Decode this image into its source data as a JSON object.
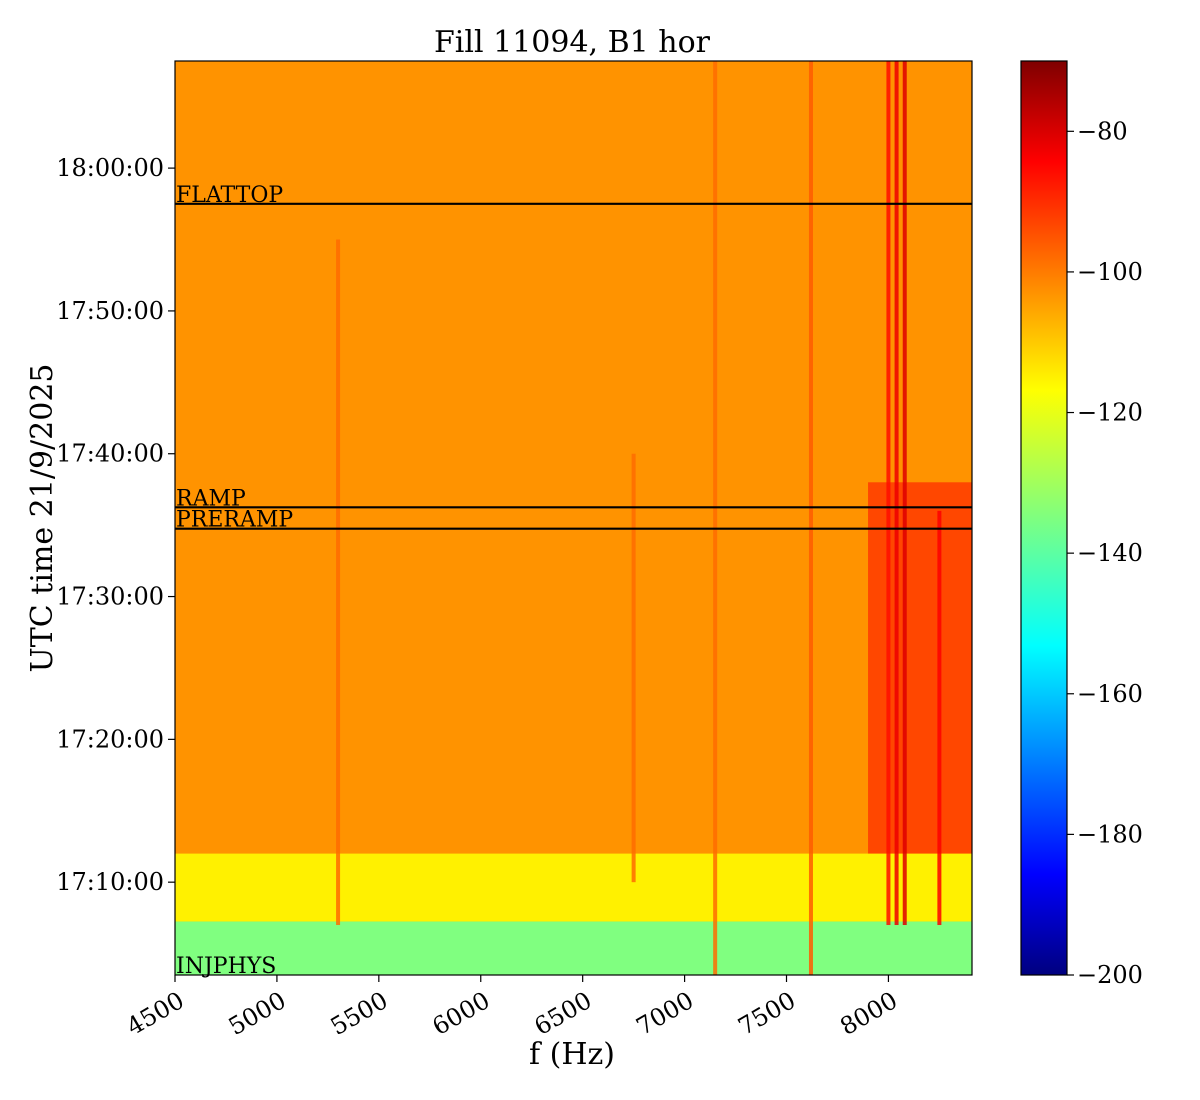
{
  "chart_data": {
    "type": "heatmap",
    "title": "Fill 11094, B1 hor",
    "xlabel": "f (Hz)",
    "ylabel": "UTC time 21/9/2025",
    "xlim": [
      4500,
      8410
    ],
    "ylim": [
      "17:03:30",
      "18:07:30"
    ],
    "x_ticks": [
      4500,
      5000,
      5500,
      6000,
      6500,
      7000,
      7500,
      8000
    ],
    "x_tick_labels": [
      "4500",
      "5000",
      "5500",
      "6000",
      "6500",
      "7000",
      "7500",
      "8000"
    ],
    "y_ticks": [
      "17:10:00",
      "17:20:00",
      "17:30:00",
      "17:40:00",
      "17:50:00",
      "18:00:00"
    ],
    "y_tick_labels": [
      "17:10:00",
      "17:20:00",
      "17:30:00",
      "17:40:00",
      "17:50:00",
      "18:00:00"
    ],
    "colormap": "jet",
    "colorbar": {
      "range": [
        -200,
        -70
      ],
      "ticks": [
        -80,
        -100,
        -120,
        -140,
        -160,
        -180,
        -200
      ],
      "tick_labels": [
        "−80",
        "−100",
        "−120",
        "−140",
        "−160",
        "−180",
        "−200"
      ]
    },
    "annotations": [
      {
        "label": "FLATTOP",
        "time": "17:57:30"
      },
      {
        "label": "RAMP",
        "time": "17:36:15"
      },
      {
        "label": "PRERAMP",
        "time": "17:34:45"
      },
      {
        "label": "INJPHYS",
        "time": "17:03:30"
      }
    ],
    "background_level": -105,
    "regions": [
      {
        "time_from": "17:03:30",
        "time_to": "17:07:15",
        "level": -135
      },
      {
        "time_from": "17:07:15",
        "time_to": "17:12:00",
        "level": -117
      }
    ],
    "lines": [
      {
        "freq": 8000,
        "time_from": "17:07:00",
        "time_to": "18:07:30",
        "level": -88
      },
      {
        "freq": 8040,
        "time_from": "17:07:00",
        "time_to": "18:07:30",
        "level": -84
      },
      {
        "freq": 8080,
        "time_from": "17:07:00",
        "time_to": "18:07:30",
        "level": -82
      },
      {
        "freq": 8250,
        "time_from": "17:07:00",
        "time_to": "17:36:00",
        "level": -86
      },
      {
        "freq": 7620,
        "time_from": "17:03:30",
        "time_to": "18:07:30",
        "level": -98
      },
      {
        "freq": 7150,
        "time_from": "17:03:30",
        "time_to": "18:07:30",
        "level": -100
      },
      {
        "freq": 6750,
        "time_from": "17:10:00",
        "time_to": "17:40:00",
        "level": -100
      },
      {
        "freq": 5300,
        "time_from": "17:07:00",
        "time_to": "17:55:00",
        "level": -100
      }
    ],
    "hot_zone": {
      "freq_from": 7900,
      "freq_to": 8410,
      "time_from": "17:08:00",
      "time_to": "17:38:00",
      "level": -92
    }
  }
}
